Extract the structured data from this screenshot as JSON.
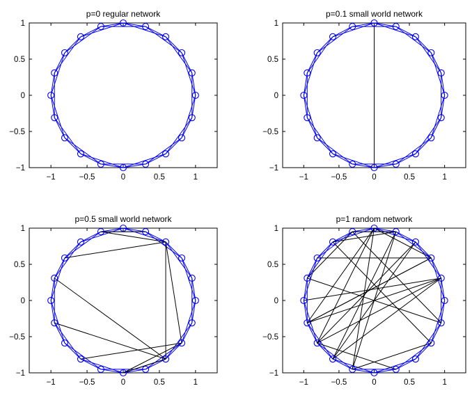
{
  "chart_data": [
    {
      "type": "network",
      "title": "p=0 regular network",
      "xlim": [
        -1.3,
        1.3
      ],
      "ylim": [
        -1,
        1
      ],
      "xticks": [
        -1,
        -0.5,
        0,
        0.5,
        1
      ],
      "yticks": [
        -1,
        -0.5,
        0,
        0.5,
        1
      ],
      "node_count": 20,
      "neighbors_each_side": 2,
      "rewired_edges": []
    },
    {
      "type": "network",
      "title": "p=0.1 small world network",
      "xlim": [
        -1.3,
        1.3
      ],
      "ylim": [
        -1,
        1
      ],
      "xticks": [
        -1,
        -0.5,
        0,
        0.5,
        1
      ],
      "yticks": [
        -1,
        -0.5,
        0,
        0.5,
        1
      ],
      "node_count": 20,
      "neighbors_each_side": 2,
      "rewired_edges": [
        [
          0,
          0.951,
          0,
          -1
        ]
      ]
    },
    {
      "type": "network",
      "title": "p=0.5 small world network",
      "xlim": [
        -1.3,
        1.3
      ],
      "ylim": [
        -1,
        1
      ],
      "xticks": [
        -1,
        -0.5,
        0,
        0.5,
        1
      ],
      "yticks": [
        -1,
        -0.5,
        0,
        0.5,
        1
      ],
      "node_count": 20,
      "neighbors_each_side": 2,
      "rewired_edges": [
        [
          -0.309,
          0.951,
          0.309,
          0.951
        ],
        [
          -0.309,
          0.951,
          0.588,
          0.809
        ],
        [
          0.588,
          0.809,
          -0.809,
          0.588
        ],
        [
          0.588,
          0.809,
          0.809,
          -0.588
        ],
        [
          0.588,
          0.809,
          0.588,
          -0.809
        ],
        [
          -0.951,
          0.309,
          0.588,
          -0.809
        ],
        [
          -0.951,
          -0.309,
          0.588,
          -0.809
        ],
        [
          0.809,
          -0.588,
          -0.588,
          -0.809
        ],
        [
          0.809,
          -0.588,
          0,
          -1
        ],
        [
          0.588,
          -0.809,
          0,
          -1
        ]
      ]
    },
    {
      "type": "network",
      "title": "p=1 random network",
      "xlim": [
        -1.3,
        1.3
      ],
      "ylim": [
        -1,
        1
      ],
      "xticks": [
        -1,
        -0.5,
        0,
        0.5,
        1
      ],
      "yticks": [
        -1,
        -0.5,
        0,
        0.5,
        1
      ],
      "node_count": 20,
      "neighbors_each_side": 0,
      "rewired_edges": [
        [
          -0.309,
          0.951,
          0.951,
          -0.309
        ],
        [
          -0.309,
          0.951,
          -0.951,
          0.309
        ],
        [
          -0.309,
          0.951,
          0.309,
          0.951
        ],
        [
          -0.588,
          0.809,
          0.309,
          0.951
        ],
        [
          0,
          1,
          -0.809,
          -0.588
        ],
        [
          0,
          1,
          -0.951,
          -0.309
        ],
        [
          0,
          1,
          -0.309,
          -0.951
        ],
        [
          0,
          1,
          0.809,
          0.588
        ],
        [
          0.309,
          0.951,
          -0.309,
          -0.951
        ],
        [
          0.309,
          0.951,
          -0.588,
          -0.809
        ],
        [
          0.588,
          0.809,
          -0.809,
          -0.588
        ],
        [
          0.809,
          0.588,
          -0.951,
          -0.309
        ],
        [
          0.951,
          0.309,
          -0.951,
          -0.309
        ],
        [
          0.951,
          0.309,
          -0.809,
          -0.588
        ],
        [
          0.951,
          0.309,
          -1,
          0
        ],
        [
          0.951,
          -0.309,
          -0.951,
          0.309
        ],
        [
          0.809,
          -0.588,
          -0.309,
          -0.951
        ],
        [
          0.809,
          -0.588,
          -0.588,
          0.809
        ],
        [
          0.309,
          -0.951,
          -0.809,
          -0.588
        ],
        [
          -0.588,
          -0.809,
          0.588,
          0.809
        ],
        [
          -0.809,
          0.588,
          0.809,
          0.588
        ],
        [
          -0.951,
          -0.309,
          0.809,
          0.588
        ],
        [
          0.951,
          0.309,
          -0.588,
          -0.809
        ]
      ]
    }
  ],
  "colors": {
    "ring": "#0000ff",
    "rewired": "#000000",
    "axes": "#000000"
  }
}
